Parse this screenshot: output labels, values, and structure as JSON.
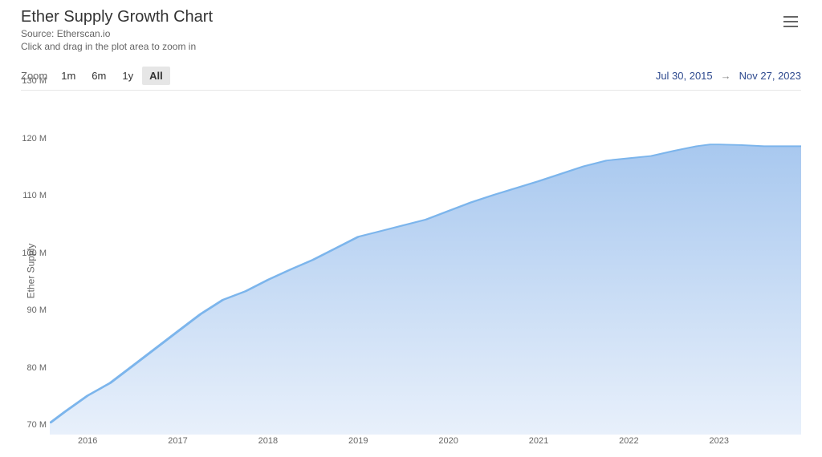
{
  "header": {
    "title": "Ether Supply Growth Chart",
    "source": "Source: Etherscan.io",
    "hint": "Click and drag in the plot area to zoom in"
  },
  "zoom": {
    "label": "Zoom",
    "options": [
      "1m",
      "6m",
      "1y",
      "All"
    ],
    "active": "All"
  },
  "range": {
    "start": "Jul 30, 2015",
    "end": "Nov 27, 2023",
    "arrow": "→"
  },
  "chart": {
    "type": "area",
    "ylabel": "Ether Supply",
    "y_unit_suffix": " M",
    "y_min": 70,
    "y_max": 130,
    "y_tick_step": 10,
    "x_min": 2015.58,
    "x_max": 2023.91,
    "x_ticks": [
      2016,
      2017,
      2018,
      2019,
      2020,
      2021,
      2022,
      2023
    ],
    "series_color": "#7cb5ec",
    "line_width": 1.5,
    "gradient_top": "#a8c8ef",
    "gradient_bottom": "#e8f0fb",
    "background_color": "#ffffff",
    "axis_font_size": 11,
    "label_font_size": 12,
    "title_font_size": 20,
    "data": [
      {
        "x": 2015.58,
        "y": 72.0
      },
      {
        "x": 2015.75,
        "y": 74.0
      },
      {
        "x": 2016.0,
        "y": 76.8
      },
      {
        "x": 2016.25,
        "y": 79.0
      },
      {
        "x": 2016.5,
        "y": 82.0
      },
      {
        "x": 2016.75,
        "y": 85.0
      },
      {
        "x": 2017.0,
        "y": 88.0
      },
      {
        "x": 2017.25,
        "y": 91.0
      },
      {
        "x": 2017.5,
        "y": 93.5
      },
      {
        "x": 2017.75,
        "y": 95.0
      },
      {
        "x": 2018.0,
        "y": 97.0
      },
      {
        "x": 2018.25,
        "y": 98.8
      },
      {
        "x": 2018.5,
        "y": 100.5
      },
      {
        "x": 2018.75,
        "y": 102.5
      },
      {
        "x": 2019.0,
        "y": 104.5
      },
      {
        "x": 2019.25,
        "y": 105.5
      },
      {
        "x": 2019.5,
        "y": 106.5
      },
      {
        "x": 2019.75,
        "y": 107.5
      },
      {
        "x": 2020.0,
        "y": 109.0
      },
      {
        "x": 2020.25,
        "y": 110.5
      },
      {
        "x": 2020.5,
        "y": 111.8
      },
      {
        "x": 2020.75,
        "y": 113.0
      },
      {
        "x": 2021.0,
        "y": 114.2
      },
      {
        "x": 2021.25,
        "y": 115.5
      },
      {
        "x": 2021.5,
        "y": 116.8
      },
      {
        "x": 2021.75,
        "y": 117.8
      },
      {
        "x": 2022.0,
        "y": 118.2
      },
      {
        "x": 2022.25,
        "y": 118.6
      },
      {
        "x": 2022.5,
        "y": 119.5
      },
      {
        "x": 2022.75,
        "y": 120.3
      },
      {
        "x": 2022.9,
        "y": 120.6
      },
      {
        "x": 2023.0,
        "y": 120.6
      },
      {
        "x": 2023.25,
        "y": 120.5
      },
      {
        "x": 2023.5,
        "y": 120.3
      },
      {
        "x": 2023.75,
        "y": 120.3
      },
      {
        "x": 2023.91,
        "y": 120.3
      }
    ]
  },
  "colors": {
    "title": "#333333",
    "subtitle": "#666666",
    "range_link": "#2f4b8f",
    "zoom_active_bg": "#e6e6e6",
    "border": "#e6e6e6"
  }
}
